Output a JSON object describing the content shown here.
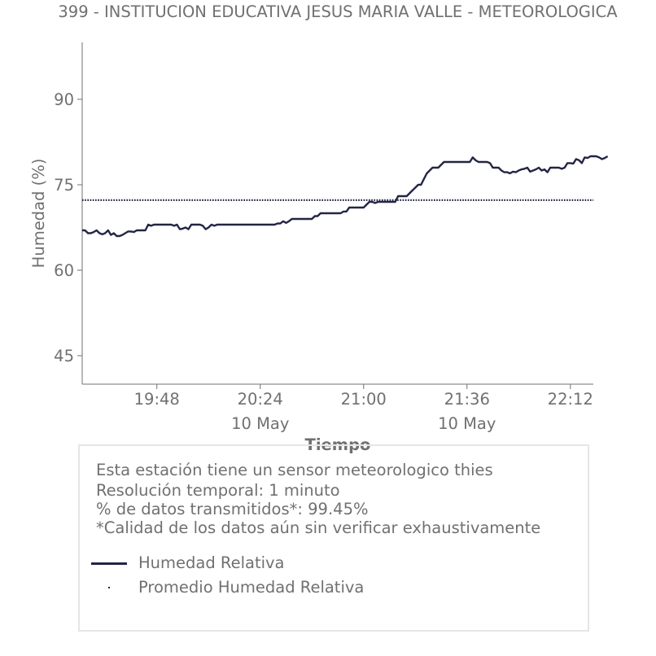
{
  "chart_data": {
    "type": "line",
    "title": "399 - INSTITUCION EDUCATIVA JESUS MARIA VALLE - METEOROLOGICA",
    "xlabel": "Tiempo",
    "ylabel": "Humedad (%)",
    "xlim": [
      "19:22",
      "22:20"
    ],
    "ylim": [
      40,
      100
    ],
    "yticks": [
      45,
      60,
      75,
      90
    ],
    "xticks": [
      {
        "time": "19:48",
        "label": "19:48",
        "sublabel": ""
      },
      {
        "time": "20:24",
        "label": "20:24",
        "sublabel": "10 May"
      },
      {
        "time": "21:00",
        "label": "21:00",
        "sublabel": ""
      },
      {
        "time": "21:36",
        "label": "21:36",
        "sublabel": "10 May"
      },
      {
        "time": "22:12",
        "label": "22:12",
        "sublabel": ""
      }
    ],
    "grid": false,
    "series": [
      {
        "name": "Humedad Relativa",
        "color": "#232545",
        "style": "solid",
        "points": [
          [
            "19:22",
            67
          ],
          [
            "19:23",
            67
          ],
          [
            "19:24",
            66.5
          ],
          [
            "19:25",
            66.5
          ],
          [
            "19:26",
            66.7
          ],
          [
            "19:27",
            67
          ],
          [
            "19:28",
            66.5
          ],
          [
            "19:29",
            66.3
          ],
          [
            "19:30",
            66.5
          ],
          [
            "19:31",
            67
          ],
          [
            "19:32",
            66.2
          ],
          [
            "19:33",
            66.5
          ],
          [
            "19:34",
            66
          ],
          [
            "19:35",
            66
          ],
          [
            "19:36",
            66.2
          ],
          [
            "19:37",
            66.5
          ],
          [
            "19:38",
            66.8
          ],
          [
            "19:39",
            66.8
          ],
          [
            "19:40",
            66.7
          ],
          [
            "19:41",
            67
          ],
          [
            "19:42",
            67
          ],
          [
            "19:43",
            67
          ],
          [
            "19:44",
            67
          ],
          [
            "19:45",
            68
          ],
          [
            "19:46",
            67.8
          ],
          [
            "19:47",
            68
          ],
          [
            "19:48",
            68
          ],
          [
            "19:49",
            68
          ],
          [
            "19:50",
            68
          ],
          [
            "19:51",
            68
          ],
          [
            "19:52",
            68
          ],
          [
            "19:53",
            68
          ],
          [
            "19:54",
            67.8
          ],
          [
            "19:55",
            68
          ],
          [
            "19:56",
            67.2
          ],
          [
            "19:57",
            67.3
          ],
          [
            "19:58",
            67.5
          ],
          [
            "19:59",
            67.2
          ],
          [
            "20:00",
            68
          ],
          [
            "20:01",
            68
          ],
          [
            "20:02",
            68
          ],
          [
            "20:03",
            68
          ],
          [
            "20:04",
            67.8
          ],
          [
            "20:05",
            67.2
          ],
          [
            "20:06",
            67.5
          ],
          [
            "20:07",
            68
          ],
          [
            "20:08",
            67.8
          ],
          [
            "20:09",
            68
          ],
          [
            "20:10",
            68
          ],
          [
            "20:11",
            68
          ],
          [
            "20:12",
            68
          ],
          [
            "20:13",
            68
          ],
          [
            "20:14",
            68
          ],
          [
            "20:15",
            68
          ],
          [
            "20:16",
            68
          ],
          [
            "20:17",
            68
          ],
          [
            "20:18",
            68
          ],
          [
            "20:19",
            68
          ],
          [
            "20:20",
            68
          ],
          [
            "20:21",
            68
          ],
          [
            "20:22",
            68
          ],
          [
            "20:23",
            68
          ],
          [
            "20:24",
            68
          ],
          [
            "20:25",
            68
          ],
          [
            "20:26",
            68
          ],
          [
            "20:27",
            68
          ],
          [
            "20:28",
            68
          ],
          [
            "20:29",
            68
          ],
          [
            "20:30",
            68.2
          ],
          [
            "20:31",
            68.2
          ],
          [
            "20:32",
            68.6
          ],
          [
            "20:33",
            68.3
          ],
          [
            "20:34",
            68.6
          ],
          [
            "20:35",
            69
          ],
          [
            "20:36",
            69
          ],
          [
            "20:37",
            69
          ],
          [
            "20:38",
            69
          ],
          [
            "20:39",
            69
          ],
          [
            "20:40",
            69
          ],
          [
            "20:41",
            69
          ],
          [
            "20:42",
            69
          ],
          [
            "20:43",
            69.5
          ],
          [
            "20:44",
            69.5
          ],
          [
            "20:45",
            70
          ],
          [
            "20:46",
            70
          ],
          [
            "20:47",
            70
          ],
          [
            "20:48",
            70
          ],
          [
            "20:49",
            70
          ],
          [
            "20:50",
            70
          ],
          [
            "20:51",
            70
          ],
          [
            "20:52",
            70
          ],
          [
            "20:53",
            70.3
          ],
          [
            "20:54",
            70.3
          ],
          [
            "20:55",
            71
          ],
          [
            "20:56",
            71
          ],
          [
            "20:57",
            71
          ],
          [
            "20:58",
            71
          ],
          [
            "20:59",
            71
          ],
          [
            "21:00",
            71
          ],
          [
            "21:01",
            71.5
          ],
          [
            "21:02",
            72
          ],
          [
            "21:03",
            72
          ],
          [
            "21:04",
            71.8
          ],
          [
            "21:05",
            72
          ],
          [
            "21:06",
            72
          ],
          [
            "21:07",
            72
          ],
          [
            "21:08",
            72
          ],
          [
            "21:09",
            72
          ],
          [
            "21:10",
            72
          ],
          [
            "21:11",
            72
          ],
          [
            "21:12",
            73
          ],
          [
            "21:13",
            73
          ],
          [
            "21:14",
            73
          ],
          [
            "21:15",
            73
          ],
          [
            "21:16",
            73.5
          ],
          [
            "21:17",
            74
          ],
          [
            "21:18",
            74.5
          ],
          [
            "21:19",
            75
          ],
          [
            "21:20",
            75
          ],
          [
            "21:21",
            76
          ],
          [
            "21:22",
            77
          ],
          [
            "21:23",
            77.5
          ],
          [
            "21:24",
            78
          ],
          [
            "21:25",
            78
          ],
          [
            "21:26",
            78
          ],
          [
            "21:27",
            78.5
          ],
          [
            "21:28",
            79
          ],
          [
            "21:29",
            79
          ],
          [
            "21:30",
            79
          ],
          [
            "21:31",
            79
          ],
          [
            "21:32",
            79
          ],
          [
            "21:33",
            79
          ],
          [
            "21:34",
            79
          ],
          [
            "21:35",
            79
          ],
          [
            "21:36",
            79
          ],
          [
            "21:37",
            79
          ],
          [
            "21:38",
            79.8
          ],
          [
            "21:39",
            79.3
          ],
          [
            "21:40",
            79
          ],
          [
            "21:41",
            79
          ],
          [
            "21:42",
            79
          ],
          [
            "21:43",
            79
          ],
          [
            "21:44",
            78.8
          ],
          [
            "21:45",
            78
          ],
          [
            "21:46",
            78
          ],
          [
            "21:47",
            78
          ],
          [
            "21:48",
            77.5
          ],
          [
            "21:49",
            77.2
          ],
          [
            "21:50",
            77.2
          ],
          [
            "21:51",
            77
          ],
          [
            "21:52",
            77.3
          ],
          [
            "21:53",
            77.2
          ],
          [
            "21:54",
            77.5
          ],
          [
            "21:55",
            77.7
          ],
          [
            "21:56",
            77.8
          ],
          [
            "21:57",
            78
          ],
          [
            "21:58",
            77.3
          ],
          [
            "21:59",
            77.5
          ],
          [
            "22:00",
            77.7
          ],
          [
            "22:01",
            78
          ],
          [
            "22:02",
            77.5
          ],
          [
            "22:03",
            77.7
          ],
          [
            "22:04",
            77.2
          ],
          [
            "22:05",
            78
          ],
          [
            "22:06",
            78
          ],
          [
            "22:07",
            78
          ],
          [
            "22:08",
            78
          ],
          [
            "22:09",
            77.8
          ],
          [
            "22:10",
            78
          ],
          [
            "22:11",
            78.8
          ],
          [
            "22:12",
            78.8
          ],
          [
            "22:13",
            78.7
          ],
          [
            "22:14",
            79.5
          ],
          [
            "22:15",
            79.3
          ],
          [
            "22:16",
            78.8
          ],
          [
            "22:17",
            79.8
          ],
          [
            "22:18",
            79.7
          ],
          [
            "22:19",
            80
          ],
          [
            "22:20",
            80
          ],
          [
            "22:21",
            80
          ],
          [
            "22:22",
            79.8
          ],
          [
            "22:23",
            79.5
          ],
          [
            "22:24",
            79.7
          ],
          [
            "22:25",
            80
          ]
        ]
      },
      {
        "name": "Promedio Humedad Relativa",
        "color": "#232545",
        "style": "dotted",
        "value": 72.3
      }
    ]
  },
  "info": {
    "line1": "Esta estación tiene un sensor meteorologico thies",
    "line2": "Resolución temporal: 1 minuto",
    "line3": "% de datos transmitidos*: 99.45%",
    "line4": "*Calidad de los datos aún sin verificar exhaustivamente"
  },
  "legend": {
    "item1": "Humedad Relativa",
    "item2": "Promedio Humedad Relativa"
  },
  "colors": {
    "series": "#232545",
    "text": "#707070",
    "axis": "#707070",
    "box_border": "#e6e6e6"
  }
}
